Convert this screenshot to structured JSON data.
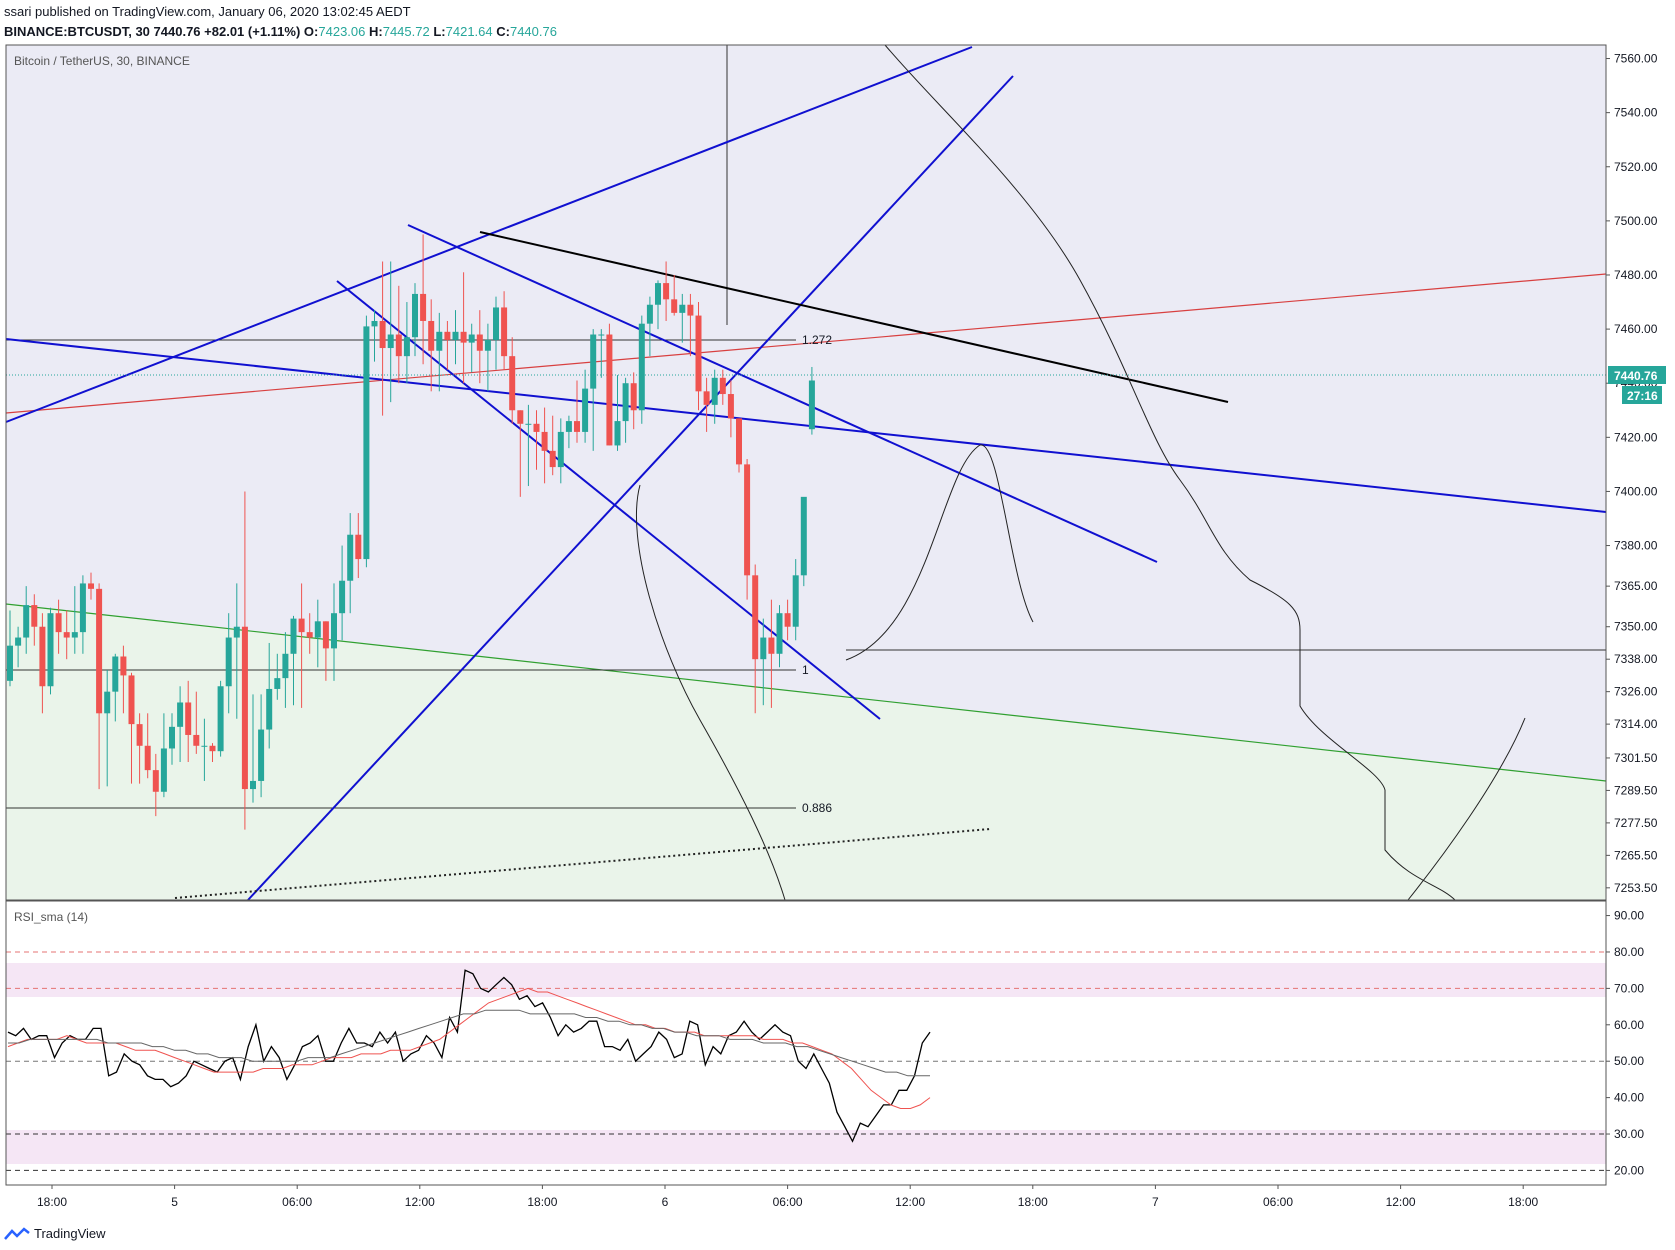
{
  "header": {
    "line1": "ssari published on TradingView.com, January 06, 2020 13:02:45 AEDT",
    "symbol": "BINANCE:BTCUSDT, 30",
    "last": "7440.76",
    "change": "+82.01 (+1.11%)",
    "o_label": "O:",
    "o_value": "7423.06",
    "h_label": "H:",
    "h_value": "7445.72",
    "l_label": "L:",
    "l_value": "7421.64",
    "c_label": "C:",
    "c_value": "7440.76"
  },
  "main_pane_title": "Bitcoin / TetherUS, 30, BINANCE",
  "rsi_pane_title": "RSI_sma (14)",
  "price_badge": "7440.76",
  "countdown_badge": "27:16",
  "fib_labels": {
    "fib_1272": "1.272",
    "fib_1": "1",
    "fib_0886": "0.886"
  },
  "footer": {
    "brand": "TradingView",
    "brand_icon": "tradingview-logo-icon"
  },
  "colors": {
    "up": "#26a69a",
    "down": "#ef5350",
    "trendline": "#1010d0",
    "rsi": "#000000",
    "rsi_ma1": "#ef5350",
    "rsi_ma2": "#666666"
  },
  "chart_data": [
    {
      "type": "candlestick",
      "title": "Bitcoin / TetherUS, 30, BINANCE",
      "y_axis": {
        "tick_labels": [
          "7560.00",
          "7540.00",
          "7520.00",
          "7500.00",
          "7480.00",
          "7460.00",
          "7440.00",
          "7420.00",
          "7400.00",
          "7380.00",
          "7365.00",
          "7350.00",
          "7338.00",
          "7326.00",
          "7314.00",
          "7301.50",
          "7289.50",
          "7277.50",
          "7265.50",
          "7253.50"
        ],
        "ylim": [
          7249,
          7565
        ]
      },
      "x_axis": {
        "tick_labels": [
          "18:00",
          "5",
          "06:00",
          "12:00",
          "18:00",
          "6",
          "06:00",
          "12:00",
          "18:00",
          "7",
          "06:00",
          "12:00",
          "18:00"
        ]
      },
      "series": [
        {
          "name": "BTCUSDT",
          "ohlc": [
            [
              7330,
              7356,
              7328,
              7343
            ],
            [
              7343,
              7350,
              7335,
              7346
            ],
            [
              7346,
              7365,
              7340,
              7358
            ],
            [
              7358,
              7362,
              7343,
              7350
            ],
            [
              7350,
              7355,
              7318,
              7328
            ],
            [
              7328,
              7357,
              7325,
              7355
            ],
            [
              7355,
              7360,
              7340,
              7348
            ],
            [
              7348,
              7356,
              7338,
              7346
            ],
            [
              7346,
              7365,
              7340,
              7348
            ],
            [
              7348,
              7369,
              7340,
              7366
            ],
            [
              7366,
              7370,
              7360,
              7364
            ],
            [
              7364,
              7366,
              7290,
              7318
            ],
            [
              7318,
              7334,
              7291,
              7326
            ],
            [
              7326,
              7340,
              7315,
              7339
            ],
            [
              7339,
              7343,
              7318,
              7332
            ],
            [
              7332,
              7333,
              7292,
              7314
            ],
            [
              7314,
              7318,
              7292,
              7306
            ],
            [
              7306,
              7318,
              7294,
              7297
            ],
            [
              7297,
              7303,
              7280,
              7289
            ],
            [
              7289,
              7318,
              7287,
              7305
            ],
            [
              7305,
              7318,
              7299,
              7313
            ],
            [
              7313,
              7328,
              7300,
              7322
            ],
            [
              7322,
              7330,
              7300,
              7310
            ],
            [
              7310,
              7326,
              7303,
              7306
            ],
            [
              7306,
              7316,
              7293,
              7306
            ],
            [
              7306,
              7307,
              7300,
              7304
            ],
            [
              7304,
              7330,
              7302,
              7328
            ],
            [
              7328,
              7355,
              7318,
              7346
            ],
            [
              7346,
              7366,
              7316,
              7350
            ],
            [
              7350,
              7400,
              7275,
              7290
            ],
            [
              7290,
              7325,
              7285,
              7293
            ],
            [
              7293,
              7325,
              7287,
              7312
            ],
            [
              7312,
              7344,
              7305,
              7327
            ],
            [
              7327,
              7340,
              7323,
              7331
            ],
            [
              7331,
              7348,
              7320,
              7340
            ],
            [
              7340,
              7354,
              7321,
              7353
            ],
            [
              7353,
              7366,
              7320,
              7348
            ],
            [
              7348,
              7355,
              7340,
              7346
            ],
            [
              7346,
              7360,
              7335,
              7352
            ],
            [
              7352,
              7352,
              7330,
              7342
            ],
            [
              7342,
              7366,
              7330,
              7355
            ],
            [
              7355,
              7380,
              7345,
              7367
            ],
            [
              7367,
              7392,
              7355,
              7384
            ],
            [
              7384,
              7392,
              7368,
              7375
            ],
            [
              7375,
              7465,
              7372,
              7461
            ],
            [
              7461,
              7467,
              7448,
              7463
            ],
            [
              7463,
              7485,
              7428,
              7453
            ],
            [
              7453,
              7485,
              7433,
              7458
            ],
            [
              7458,
              7476,
              7440,
              7450
            ],
            [
              7450,
              7470,
              7440,
              7457
            ],
            [
              7457,
              7477,
              7450,
              7473
            ],
            [
              7473,
              7495,
              7447,
              7463
            ],
            [
              7463,
              7471,
              7437,
              7452
            ],
            [
              7452,
              7466,
              7437,
              7459
            ],
            [
              7459,
              7463,
              7445,
              7456
            ],
            [
              7456,
              7467,
              7447,
              7459
            ],
            [
              7459,
              7481,
              7440,
              7455
            ],
            [
              7455,
              7462,
              7444,
              7458
            ],
            [
              7458,
              7467,
              7440,
              7452
            ],
            [
              7452,
              7462,
              7437,
              7456
            ],
            [
              7456,
              7472,
              7445,
              7468
            ],
            [
              7468,
              7474,
              7445,
              7450
            ],
            [
              7450,
              7457,
              7425,
              7430
            ],
            [
              7430,
              7430,
              7398,
              7425
            ],
            [
              7425,
              7432,
              7402,
              7425
            ],
            [
              7425,
              7430,
              7408,
              7422
            ],
            [
              7422,
              7431,
              7403,
              7415
            ],
            [
              7415,
              7428,
              7406,
              7409
            ],
            [
              7409,
              7427,
              7403,
              7422
            ],
            [
              7422,
              7428,
              7416,
              7426
            ],
            [
              7426,
              7441,
              7418,
              7422
            ],
            [
              7422,
              7445,
              7418,
              7438
            ],
            [
              7438,
              7460,
              7415,
              7458
            ],
            [
              7458,
              7460,
              7442,
              7458
            ],
            [
              7458,
              7462,
              7417,
              7417
            ],
            [
              7417,
              7443,
              7415,
              7426
            ],
            [
              7426,
              7442,
              7418,
              7440
            ],
            [
              7440,
              7444,
              7423,
              7430
            ],
            [
              7430,
              7465,
              7425,
              7462
            ],
            [
              7462,
              7472,
              7450,
              7469
            ],
            [
              7469,
              7478,
              7460,
              7477
            ],
            [
              7477,
              7485,
              7463,
              7471
            ],
            [
              7471,
              7480,
              7465,
              7466
            ],
            [
              7466,
              7473,
              7455,
              7469
            ],
            [
              7469,
              7473,
              7450,
              7465
            ],
            [
              7465,
              7470,
              7430,
              7437
            ],
            [
              7437,
              7442,
              7422,
              7432
            ],
            [
              7432,
              7445,
              7425,
              7442
            ],
            [
              7442,
              7445,
              7432,
              7436
            ],
            [
              7436,
              7441,
              7420,
              7427
            ],
            [
              7427,
              7427,
              7407,
              7410
            ],
            [
              7410,
              7412,
              7360,
              7369
            ],
            [
              7369,
              7373,
              7318,
              7338
            ],
            [
              7338,
              7353,
              7321,
              7346
            ],
            [
              7346,
              7360,
              7320,
              7340
            ],
            [
              7340,
              7358,
              7335,
              7355
            ],
            [
              7355,
              7360,
              7345,
              7350
            ],
            [
              7350,
              7375,
              7345,
              7369
            ],
            [
              7369,
              7395,
              7365,
              7398
            ],
            [
              7423,
              7446,
              7421,
              7441
            ]
          ]
        }
      ],
      "annotations": [
        "1.272",
        "1",
        "0.886"
      ],
      "last_price": 7440.76
    },
    {
      "type": "line",
      "title": "RSI_sma (14)",
      "y_axis": {
        "tick_labels": [
          "90.00",
          "80.00",
          "70.00",
          "60.00",
          "50.00",
          "40.00",
          "30.00",
          "20.00"
        ],
        "ylim": [
          16,
          94
        ]
      },
      "bands": [
        [
          70,
          80
        ],
        [
          20,
          30
        ]
      ],
      "series": [
        {
          "name": "RSI",
          "values": [
            58,
            57,
            59,
            56,
            57,
            57,
            51,
            55,
            57,
            56,
            56,
            59,
            59,
            46,
            47,
            52,
            50,
            49,
            46,
            45,
            45,
            43,
            44,
            46,
            50,
            49,
            48,
            47,
            50,
            51,
            45,
            54,
            60,
            50,
            54,
            51,
            45,
            49,
            54,
            55,
            57,
            50,
            50,
            55,
            59,
            55,
            55,
            54,
            58,
            55,
            58,
            50,
            52,
            53,
            57,
            55,
            51,
            62,
            58,
            75,
            74,
            70,
            69,
            71,
            73,
            71,
            67,
            68,
            65,
            66,
            62,
            57,
            60,
            58,
            59,
            61,
            61,
            54,
            54,
            53,
            56,
            50,
            52,
            54,
            58,
            56,
            51,
            52,
            61,
            60,
            49,
            54,
            52,
            57,
            58,
            61,
            58,
            56,
            58,
            60,
            58,
            57,
            50,
            48,
            52,
            48,
            44,
            36,
            32,
            28,
            33,
            32,
            35,
            38,
            38,
            42,
            42,
            46,
            55,
            58
          ]
        },
        {
          "name": "MA",
          "values": [
            54,
            55,
            56,
            56,
            56,
            56,
            57,
            56,
            55,
            55,
            55,
            55,
            54,
            53,
            53,
            53,
            52,
            51,
            50,
            49,
            48,
            47,
            47,
            47,
            47,
            47,
            48,
            48,
            48,
            49,
            49,
            49,
            50,
            51,
            51,
            51,
            52,
            52,
            52,
            53,
            53,
            53,
            54,
            55,
            56,
            58,
            60,
            62,
            64,
            66,
            67,
            68,
            69,
            70,
            69,
            69,
            68,
            67,
            66,
            65,
            64,
            63,
            62,
            61,
            60,
            60,
            59,
            59,
            58,
            58,
            58,
            57,
            57,
            57,
            57,
            57,
            57,
            56,
            56,
            56,
            55,
            55,
            54,
            53,
            52,
            50,
            48,
            45,
            42,
            40,
            38,
            37,
            37,
            38,
            40
          ]
        },
        {
          "name": "MA2",
          "values": [
            55,
            55,
            56,
            56,
            56,
            56,
            56,
            56,
            56,
            55,
            55,
            55,
            55,
            54,
            54,
            53,
            53,
            52,
            52,
            51,
            51,
            51,
            50,
            50,
            50,
            50,
            50,
            51,
            51,
            51,
            52,
            53,
            54,
            55,
            56,
            57,
            58,
            59,
            60,
            61,
            62,
            63,
            63,
            64,
            64,
            64,
            64,
            63,
            63,
            63,
            63,
            63,
            62,
            62,
            61,
            61,
            60,
            60,
            59,
            59,
            58,
            58,
            57,
            57,
            57,
            56,
            56,
            56,
            55,
            55,
            55,
            54,
            54,
            53,
            52,
            51,
            50,
            49,
            48,
            47,
            47,
            46,
            46,
            46
          ]
        }
      ],
      "reference_lines": [
        80,
        70,
        50,
        30,
        20
      ]
    }
  ]
}
